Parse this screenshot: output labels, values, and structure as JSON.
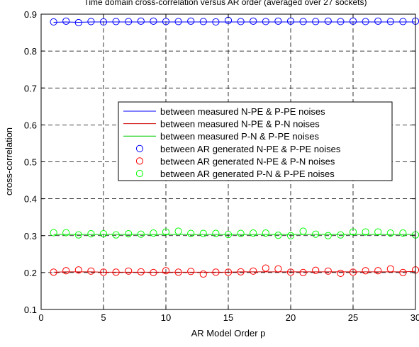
{
  "chart_data": {
    "type": "line",
    "title": "Time domain cross-correlation versus AR order (averaged over 27 sockets)",
    "xlabel": "AR Model Order p",
    "ylabel": "cross-correlation",
    "xlim": [
      0,
      30
    ],
    "ylim": [
      0.1,
      0.9
    ],
    "xticks": [
      0,
      5,
      10,
      15,
      20,
      25,
      30
    ],
    "yticks": [
      0.1,
      0.2,
      0.3,
      0.4,
      0.5,
      0.6,
      0.7,
      0.8,
      0.9
    ],
    "grid": "dashed",
    "legend_position": "center",
    "x": [
      1,
      2,
      3,
      4,
      5,
      6,
      7,
      8,
      9,
      10,
      11,
      12,
      13,
      14,
      15,
      16,
      17,
      18,
      19,
      20,
      21,
      22,
      23,
      24,
      25,
      26,
      27,
      28,
      29,
      30
    ],
    "series": [
      {
        "name": "between measured N-PE & P-PE noises",
        "style": "line",
        "color": "#0000ff",
        "values": [
          0.878,
          0.879,
          0.878,
          0.879,
          0.879,
          0.879,
          0.879,
          0.879,
          0.879,
          0.879,
          0.879,
          0.879,
          0.879,
          0.879,
          0.879,
          0.879,
          0.879,
          0.879,
          0.879,
          0.879,
          0.879,
          0.879,
          0.879,
          0.879,
          0.879,
          0.879,
          0.879,
          0.879,
          0.879,
          0.879
        ]
      },
      {
        "name": "between measured N-PE & P-N noises",
        "style": "line",
        "color": "#cc0000",
        "values": [
          0.201,
          0.202,
          0.202,
          0.202,
          0.201,
          0.201,
          0.201,
          0.201,
          0.201,
          0.201,
          0.201,
          0.201,
          0.201,
          0.201,
          0.201,
          0.202,
          0.202,
          0.202,
          0.202,
          0.202,
          0.202,
          0.202,
          0.202,
          0.202,
          0.202,
          0.202,
          0.202,
          0.202,
          0.202,
          0.203
        ]
      },
      {
        "name": "between measured P-N & P-PE noises",
        "style": "line",
        "color": "#00cc00",
        "values": [
          0.303,
          0.303,
          0.303,
          0.303,
          0.303,
          0.303,
          0.303,
          0.303,
          0.303,
          0.303,
          0.303,
          0.303,
          0.303,
          0.303,
          0.303,
          0.303,
          0.303,
          0.303,
          0.303,
          0.303,
          0.303,
          0.303,
          0.303,
          0.303,
          0.303,
          0.303,
          0.303,
          0.303,
          0.303,
          0.303
        ]
      },
      {
        "name": "between AR generated N-PE & P-PE noises",
        "style": "marker",
        "color": "#0000ff",
        "values": [
          0.879,
          0.881,
          0.877,
          0.88,
          0.879,
          0.88,
          0.88,
          0.881,
          0.881,
          0.88,
          0.88,
          0.881,
          0.88,
          0.879,
          0.883,
          0.88,
          0.881,
          0.88,
          0.881,
          0.881,
          0.88,
          0.88,
          0.881,
          0.88,
          0.881,
          0.88,
          0.881,
          0.88,
          0.88,
          0.881
        ]
      },
      {
        "name": "between AR generated N-PE & P-N noises",
        "style": "marker",
        "color": "#ff0000",
        "values": [
          0.201,
          0.205,
          0.207,
          0.204,
          0.201,
          0.201,
          0.204,
          0.202,
          0.2,
          0.205,
          0.201,
          0.203,
          0.196,
          0.201,
          0.201,
          0.202,
          0.204,
          0.212,
          0.21,
          0.201,
          0.2,
          0.206,
          0.204,
          0.198,
          0.201,
          0.205,
          0.205,
          0.21,
          0.2,
          0.207
        ]
      },
      {
        "name": "between AR generated P-N & P-PE noises",
        "style": "marker",
        "color": "#00ff00",
        "values": [
          0.308,
          0.308,
          0.302,
          0.305,
          0.305,
          0.302,
          0.305,
          0.304,
          0.307,
          0.31,
          0.312,
          0.306,
          0.306,
          0.306,
          0.303,
          0.306,
          0.307,
          0.307,
          0.301,
          0.3,
          0.312,
          0.304,
          0.3,
          0.302,
          0.31,
          0.31,
          0.31,
          0.307,
          0.307,
          0.302
        ]
      }
    ]
  }
}
